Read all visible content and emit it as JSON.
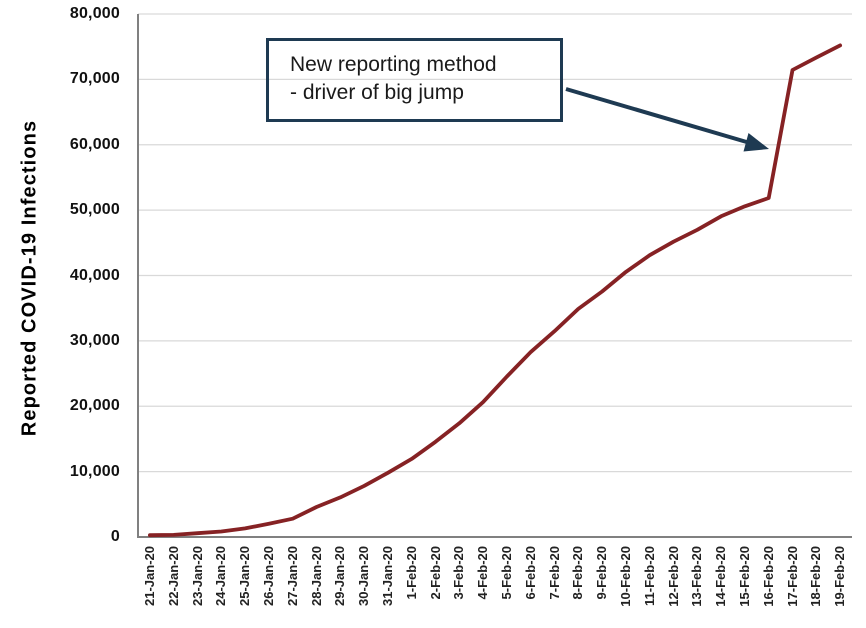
{
  "chart_data": {
    "type": "line",
    "title": "",
    "xlabel": "",
    "ylabel": "Reported COVID-19 Infections",
    "ylim": [
      0,
      80000
    ],
    "ytick_interval": 10000,
    "ytick_labels": [
      "0",
      "10,000",
      "20,000",
      "30,000",
      "40,000",
      "50,000",
      "60,000",
      "70,000",
      "80,000"
    ],
    "grid": true,
    "legend_position": "none",
    "categories": [
      "21-Jan-20",
      "22-Jan-20",
      "23-Jan-20",
      "24-Jan-20",
      "25-Jan-20",
      "26-Jan-20",
      "27-Jan-20",
      "28-Jan-20",
      "29-Jan-20",
      "30-Jan-20",
      "31-Jan-20",
      "1-Feb-20",
      "2-Feb-20",
      "3-Feb-20",
      "4-Feb-20",
      "5-Feb-20",
      "6-Feb-20",
      "7-Feb-20",
      "8-Feb-20",
      "9-Feb-20",
      "10-Feb-20",
      "11-Feb-20",
      "12-Feb-20",
      "13-Feb-20",
      "14-Feb-20",
      "15-Feb-20",
      "16-Feb-20",
      "17-Feb-20",
      "18-Feb-20",
      "19-Feb-20"
    ],
    "series": [
      {
        "name": "Reported COVID-19 Infections",
        "color": "#862224",
        "values": [
          282,
          314,
          581,
          846,
          1320,
          2014,
          2798,
          4593,
          6065,
          7818,
          9826,
          11953,
          14557,
          17391,
          20630,
          24554,
          28276,
          31481,
          34886,
          37558,
          40554,
          43103,
          45171,
          46997,
          49053,
          50580,
          51857,
          71429,
          73332,
          75204
        ]
      }
    ],
    "annotation": {
      "text": "New reporting method - driver of big jump",
      "line1": "New reporting method",
      "line2": "- driver of big jump",
      "box_border_color": "#1e3a52",
      "arrow_color": "#1e3a52"
    },
    "colors": {
      "line": "#862224",
      "gridline": "#d9d9d9",
      "axis": "#808080",
      "label_text": "#000000"
    }
  }
}
